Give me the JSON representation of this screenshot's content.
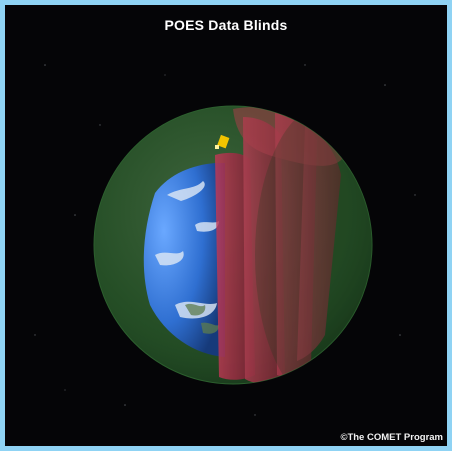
{
  "title": "POES Data Blinds",
  "credit": "©The COMET Program",
  "colors": {
    "frame": "#8fd3f4",
    "space": "#050507",
    "outer_shell": "#3f8a3f",
    "data_blinds": "#b0304a",
    "earth_ocean": "#2f6fd1",
    "satellite": "#f2c400"
  },
  "icons": [
    "satellite-icon"
  ]
}
